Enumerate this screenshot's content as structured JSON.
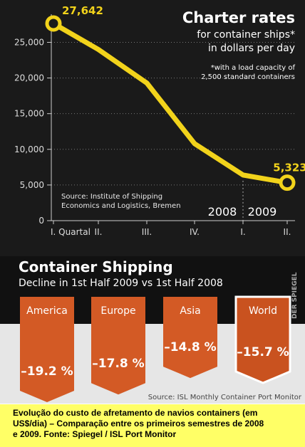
{
  "chart_data": [
    {
      "type": "line",
      "title": "Charter rates",
      "subtitle_lines": [
        "for container ships*",
        "in dollars per day"
      ],
      "footnote_lines": [
        "*with a load capacity of",
        "2,500 standard containers"
      ],
      "source_lines": [
        "Source: Institute of Shipping",
        "Economics and Logistics, Bremen"
      ],
      "x": [
        "I. Quartal",
        "II.",
        "III.",
        "IV.",
        "I.",
        "II."
      ],
      "values": [
        27642,
        24000,
        19300,
        10800,
        6400,
        5323
      ],
      "highlight_labels": [
        "27,642",
        "",
        "",
        "",
        "",
        "5,323"
      ],
      "years": [
        "2008",
        "2009"
      ],
      "yticks": [
        "0",
        "5,000",
        "10,000",
        "15,000",
        "20,000",
        "25,000"
      ],
      "ylim": [
        0,
        27642
      ],
      "grid": "horizontal-dotted",
      "colors": {
        "line": "#f2d31b",
        "background": "#1a1a1a"
      }
    },
    {
      "type": "bar",
      "title": "Container Shipping",
      "subtitle": "Decline in 1st Half 2009 vs 1st Half 2008",
      "categories": [
        "America",
        "Europe",
        "Asia",
        "World"
      ],
      "values": [
        -19.2,
        -17.8,
        -14.8,
        -15.7
      ],
      "value_labels": [
        "–19.2 %",
        "–17.8 %",
        "–14.8 %",
        "–15.7 %"
      ],
      "source": "Source: ISL Monthly Container Port Monitor",
      "colors": {
        "bar": "#d35a25",
        "highlight": "#c9521f"
      }
    }
  ],
  "watermark": "DER SPIEGEL",
  "caption_lines": [
    "Evolução do custo de afretamento de navios containers (em",
    "US$/dia) – Comparação entre os primeiros semestres de 2008",
    "e 2009.   Fonte: Spiegel / ISL Port Monitor"
  ]
}
